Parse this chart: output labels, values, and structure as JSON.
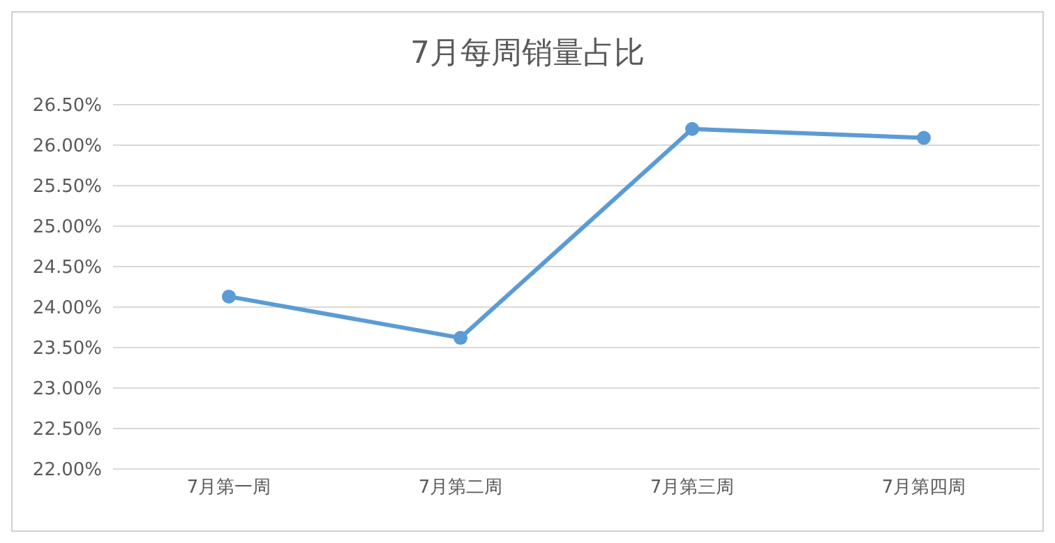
{
  "chart_data": {
    "type": "line",
    "title": "7月每周销量占比",
    "categories": [
      "7月第一周",
      "7月第二周",
      "7月第三周",
      "7月第四周"
    ],
    "series": [
      {
        "color": "#5b9bd5",
        "values": [
          24.13,
          23.62,
          26.2,
          26.09
        ]
      }
    ],
    "ylim": [
      22,
      26.5
    ],
    "yticks": [
      {
        "value": 22,
        "label": "22.00%"
      },
      {
        "value": 22.5,
        "label": "22.50%"
      },
      {
        "value": 23,
        "label": "23.00%"
      },
      {
        "value": 23.5,
        "label": "23.50%"
      },
      {
        "value": 24,
        "label": "24.00%"
      },
      {
        "value": 24.5,
        "label": "24.50%"
      },
      {
        "value": 25,
        "label": "25.00%"
      },
      {
        "value": 25.5,
        "label": "25.50%"
      },
      {
        "value": 26,
        "label": "26.00%"
      },
      {
        "value": 26.5,
        "label": "26.50%"
      }
    ],
    "grid": "y",
    "legend": false,
    "marker": "circle",
    "line_style": "solid"
  }
}
